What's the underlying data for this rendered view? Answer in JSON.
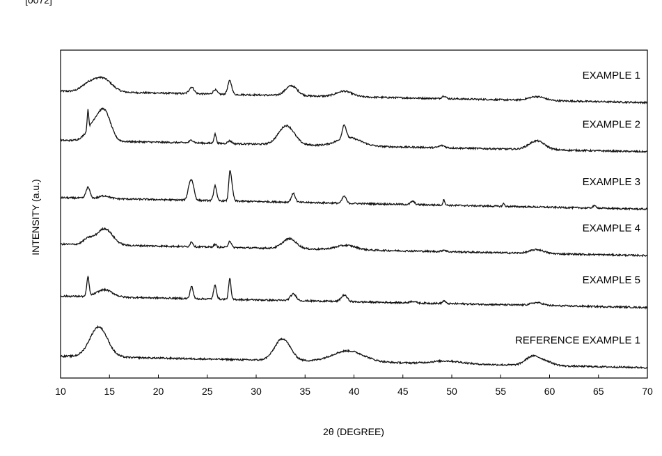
{
  "header": {
    "top_mark": "[0072]"
  },
  "chart_data": {
    "type": "line",
    "xlabel": "2θ (DEGREE)",
    "ylabel": "INTENSITY (a.u.)",
    "xlim": [
      10,
      70
    ],
    "ylim": [
      0,
      6
    ],
    "x_ticks": [
      10,
      15,
      20,
      25,
      30,
      35,
      40,
      45,
      50,
      55,
      60,
      65,
      70
    ],
    "grid": false,
    "series": [
      {
        "name": "EXAMPLE 1",
        "baseline": 5.25,
        "peaks": [
          [
            12.8,
            0.12,
            0.7
          ],
          [
            14.3,
            0.25,
            0.9
          ],
          [
            23.4,
            0.12,
            0.25
          ],
          [
            25.8,
            0.08,
            0.2
          ],
          [
            27.3,
            0.25,
            0.2
          ],
          [
            33.6,
            0.18,
            0.6
          ],
          [
            39.0,
            0.1,
            0.8
          ],
          [
            49.2,
            0.05,
            0.2
          ],
          [
            58.7,
            0.07,
            0.8
          ]
        ]
      },
      {
        "name": "EXAMPLE 2",
        "baseline": 4.35,
        "peaks": [
          [
            12.8,
            0.35,
            0.08
          ],
          [
            13.6,
            0.35,
            0.8
          ],
          [
            14.6,
            0.4,
            0.6
          ],
          [
            23.4,
            0.05,
            0.2
          ],
          [
            25.8,
            0.17,
            0.12
          ],
          [
            27.3,
            0.05,
            0.2
          ],
          [
            33.1,
            0.35,
            0.8
          ],
          [
            39.0,
            0.25,
            0.2
          ],
          [
            39.5,
            0.15,
            1.2
          ],
          [
            49.0,
            0.04,
            0.3
          ],
          [
            58.7,
            0.16,
            0.8
          ]
        ]
      },
      {
        "name": "EXAMPLE 3",
        "baseline": 3.3,
        "peaks": [
          [
            12.8,
            0.2,
            0.2
          ],
          [
            14.5,
            0.05,
            0.5
          ],
          [
            23.2,
            0.25,
            0.2
          ],
          [
            23.5,
            0.25,
            0.2
          ],
          [
            25.8,
            0.28,
            0.15
          ],
          [
            27.3,
            0.45,
            0.12
          ],
          [
            27.5,
            0.25,
            0.15
          ],
          [
            33.8,
            0.16,
            0.2
          ],
          [
            39.0,
            0.13,
            0.2
          ],
          [
            46.0,
            0.06,
            0.2
          ],
          [
            49.2,
            0.1,
            0.1
          ],
          [
            55.3,
            0.05,
            0.1
          ],
          [
            64.6,
            0.04,
            0.2
          ]
        ]
      },
      {
        "name": "EXAMPLE 4",
        "baseline": 2.45,
        "peaks": [
          [
            12.8,
            0.1,
            0.5
          ],
          [
            14.5,
            0.3,
            0.8
          ],
          [
            23.4,
            0.09,
            0.15
          ],
          [
            25.8,
            0.05,
            0.15
          ],
          [
            27.3,
            0.12,
            0.15
          ],
          [
            33.4,
            0.18,
            0.7
          ],
          [
            39.2,
            0.08,
            1.0
          ],
          [
            49.2,
            0.03,
            0.2
          ],
          [
            58.7,
            0.07,
            0.7
          ]
        ]
      },
      {
        "name": "EXAMPLE 5",
        "baseline": 1.5,
        "peaks": [
          [
            12.8,
            0.35,
            0.12
          ],
          [
            14.5,
            0.13,
            0.8
          ],
          [
            23.4,
            0.23,
            0.15
          ],
          [
            25.8,
            0.25,
            0.15
          ],
          [
            27.3,
            0.38,
            0.12
          ],
          [
            33.8,
            0.12,
            0.3
          ],
          [
            39.0,
            0.12,
            0.3
          ],
          [
            46.0,
            0.03,
            0.3
          ],
          [
            49.2,
            0.05,
            0.15
          ],
          [
            58.7,
            0.05,
            0.6
          ]
        ]
      },
      {
        "name": "REFERENCE EXAMPLE 1",
        "baseline": 0.4,
        "peaks": [
          [
            13.9,
            0.55,
            0.9
          ],
          [
            32.7,
            0.4,
            0.8
          ],
          [
            39.4,
            0.2,
            1.6
          ],
          [
            49.5,
            0.05,
            1.5
          ],
          [
            58.2,
            0.15,
            0.7
          ],
          [
            59.5,
            0.08,
            0.8
          ]
        ]
      }
    ]
  }
}
